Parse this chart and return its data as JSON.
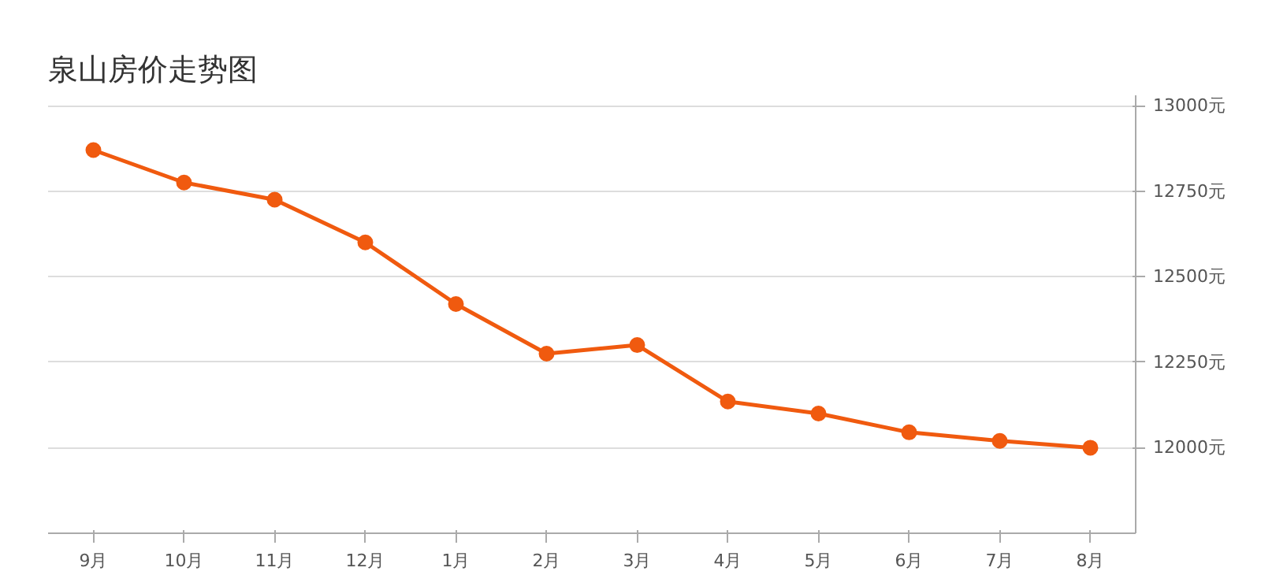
{
  "chart_data": {
    "type": "line",
    "title": "泉山房价走势图",
    "categories": [
      "9月",
      "10月",
      "11月",
      "12月",
      "1月",
      "2月",
      "3月",
      "4月",
      "5月",
      "6月",
      "7月",
      "8月"
    ],
    "series": [
      {
        "color": "#f05a0f",
        "values": [
          12870,
          12775,
          12725,
          12600,
          12420,
          12275,
          12300,
          12135,
          12100,
          12045,
          12020,
          12000
        ]
      }
    ],
    "ylim": [
      11750,
      13030
    ],
    "yticks": [
      {
        "value": 12000,
        "label": "12000元"
      },
      {
        "value": 12250,
        "label": "12250元"
      },
      {
        "value": 12500,
        "label": "12500元"
      },
      {
        "value": 12750,
        "label": "12750元"
      },
      {
        "value": 13000,
        "label": "13000元"
      }
    ],
    "grid": "y",
    "marker": "circle",
    "line_style": "solid"
  }
}
